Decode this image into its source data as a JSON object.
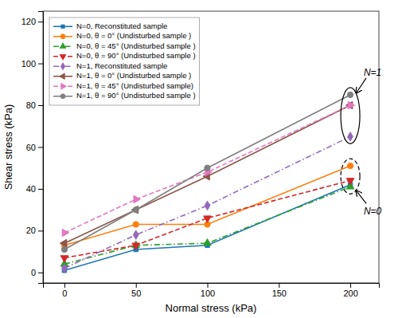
{
  "chart_data": {
    "type": "line",
    "x": [
      0,
      50,
      100,
      200
    ],
    "series": [
      {
        "name": "N=0, Reconstituted sample",
        "values": [
          1,
          11,
          13,
          42
        ],
        "marker": "square",
        "line_style": "solid"
      },
      {
        "name": "N=0, θ = 0° (Undisturbed sample )",
        "values": [
          13,
          23,
          23,
          51
        ],
        "marker": "circle",
        "line_style": "solid"
      },
      {
        "name": "N=0, θ = 45° (Undisturbed sample )",
        "values": [
          4,
          13,
          14,
          41
        ],
        "marker": "triangle-up",
        "line_style": "dashdot"
      },
      {
        "name": "N=0, θ = 90° (Undisturbed sample )",
        "values": [
          7,
          13,
          26,
          44
        ],
        "marker": "triangle-down",
        "line_style": "dashed"
      },
      {
        "name": "N=1, Reconstituted sample",
        "values": [
          2,
          18,
          32,
          65
        ],
        "marker": "diamond",
        "line_style": "dashdot"
      },
      {
        "name": "N=1, θ = 0° (Undisturbed sample )",
        "values": [
          14,
          30,
          46,
          80
        ],
        "marker": "triangle-left",
        "line_style": "solid"
      },
      {
        "name": "N=1, θ = 45° (Undisturbed sample)",
        "values": [
          19,
          35,
          48,
          80
        ],
        "marker": "triangle-right",
        "line_style": "dashed"
      },
      {
        "name": "N=1, θ = 90° (Undisturbed sample )",
        "values": [
          11,
          30,
          50,
          85
        ],
        "marker": "circle",
        "line_style": "solid"
      }
    ],
    "xlabel": "Normal stress (kPa)",
    "ylabel": "Shear stress (kPa)",
    "xlim": [
      -15,
      220
    ],
    "ylim": [
      -5,
      125
    ],
    "xticks": [
      0,
      50,
      100,
      150,
      200
    ],
    "yticks": [
      0,
      20,
      40,
      60,
      80,
      100,
      120
    ],
    "legend": "upper-left",
    "annotations": [
      {
        "text": "N=1"
      },
      {
        "text": "N=0"
      }
    ]
  }
}
